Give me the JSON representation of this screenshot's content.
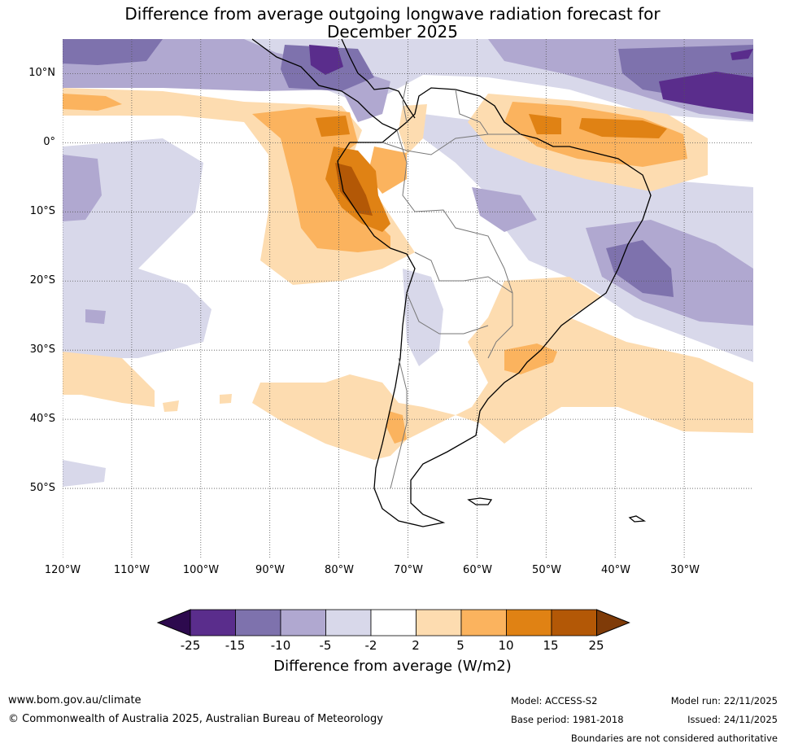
{
  "title": {
    "line1": "Difference from average outgoing longwave radiation forecast for",
    "line2": "December 2025"
  },
  "map": {
    "lat_labels": [
      "10°N",
      "0°",
      "10°S",
      "20°S",
      "30°S",
      "40°S",
      "50°S"
    ],
    "lon_labels": [
      "120°W",
      "110°W",
      "100°W",
      "90°W",
      "80°W",
      "70°W",
      "60°W",
      "50°W",
      "40°W",
      "30°W"
    ],
    "lat_range_deg": [
      -60,
      15
    ],
    "lon_range_deg": [
      -120,
      -20
    ]
  },
  "colorbar": {
    "ticks": [
      "-25",
      "-15",
      "-10",
      "-5",
      "-2",
      "2",
      "5",
      "10",
      "15",
      "25"
    ],
    "colors": [
      "#2d0a4e",
      "#5a2d8c",
      "#7e72ad",
      "#b0a8d0",
      "#d8d8ea",
      "#ffffff",
      "#fddcb0",
      "#fbb35e",
      "#e08214",
      "#b35806",
      "#7f3b08"
    ],
    "label": "Difference from average (W/m2)"
  },
  "footer": {
    "url": "www.bom.gov.au/climate",
    "copyright": "© Commonwealth of Australia 2025, Australian Bureau of Meteorology",
    "model": "Model: ACCESS-S2",
    "base_period": "Base period: 1981-2018",
    "model_run": "Model run: 22/11/2025",
    "issued": "Issued: 24/11/2025",
    "disclaimer": "Boundaries are not considered authoritative"
  }
}
